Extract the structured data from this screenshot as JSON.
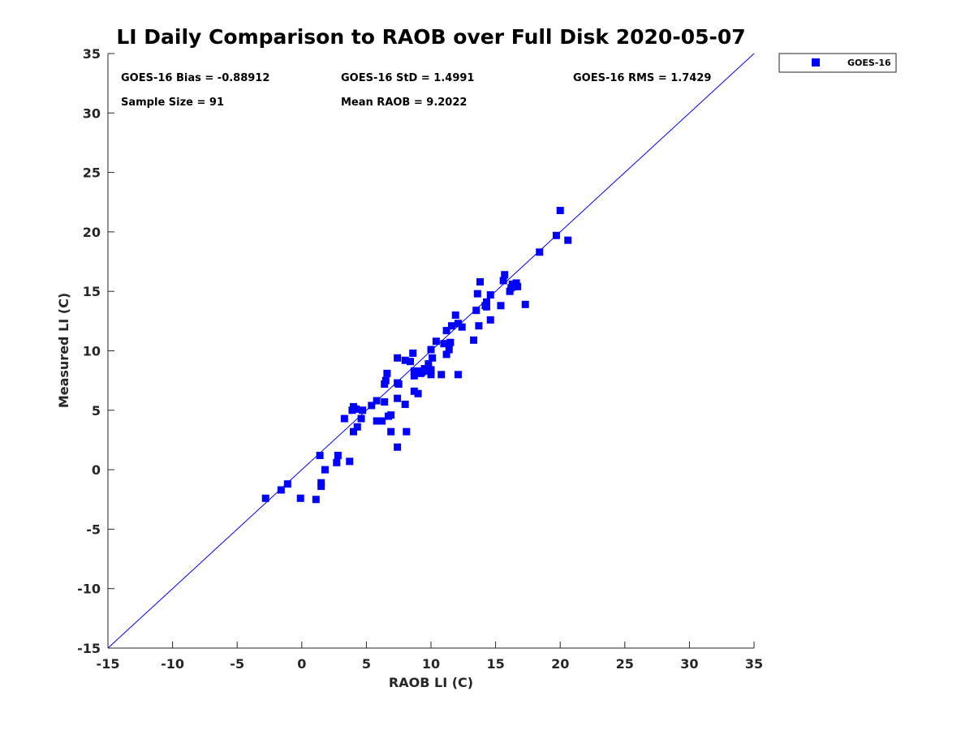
{
  "chart_data": {
    "type": "scatter",
    "title": "LI Daily Comparison to RAOB over Full Disk 2020-05-07",
    "xlabel": "RAOB LI (C)",
    "ylabel": "Measured LI (C)",
    "xlim": [
      -15,
      35
    ],
    "ylim": [
      -15,
      35
    ],
    "xticks": [
      "-15",
      "-10",
      "-5",
      "0",
      "5",
      "10",
      "15",
      "20",
      "25",
      "30",
      "35"
    ],
    "yticks": [
      "-15",
      "-10",
      "-5",
      "0",
      "5",
      "10",
      "15",
      "20",
      "25",
      "30",
      "35"
    ],
    "grid": false,
    "legend_position": "outside-top-right",
    "reference_line": {
      "name": "1:1 line",
      "x": [
        -15,
        35
      ],
      "y": [
        -15,
        35
      ],
      "color": "#0000ff"
    },
    "annotations": {
      "bias": "GOES-16 Bias = -0.88912",
      "std": "GOES-16 StD = 1.4991",
      "rms": "GOES-16 RMS = 1.7429",
      "sample_size": "Sample Size = 91",
      "mean_raob": "Mean RAOB = 9.2022"
    },
    "series": [
      {
        "name": "GOES-16",
        "color": "#0000ff",
        "marker": "square",
        "points": [
          [
            -2.8,
            -2.4
          ],
          [
            -1.6,
            -1.7
          ],
          [
            -1.1,
            -1.2
          ],
          [
            -0.1,
            -2.4
          ],
          [
            1.1,
            -2.5
          ],
          [
            1.5,
            -1.1
          ],
          [
            1.5,
            -1.4
          ],
          [
            1.4,
            1.2
          ],
          [
            1.8,
            0.0
          ],
          [
            2.7,
            0.6
          ],
          [
            2.8,
            1.2
          ],
          [
            3.7,
            0.7
          ],
          [
            3.3,
            4.3
          ],
          [
            3.9,
            5.0
          ],
          [
            4.0,
            5.3
          ],
          [
            4.0,
            3.2
          ],
          [
            4.3,
            3.6
          ],
          [
            4.6,
            4.3
          ],
          [
            4.7,
            5.0
          ],
          [
            5.4,
            5.4
          ],
          [
            5.8,
            5.8
          ],
          [
            5.8,
            4.1
          ],
          [
            6.2,
            4.1
          ],
          [
            6.4,
            5.7
          ],
          [
            6.4,
            7.2
          ],
          [
            6.5,
            7.5
          ],
          [
            6.6,
            8.1
          ],
          [
            6.7,
            4.5
          ],
          [
            6.9,
            4.6
          ],
          [
            6.9,
            3.2
          ],
          [
            7.4,
            9.4
          ],
          [
            7.4,
            7.3
          ],
          [
            7.4,
            6.0
          ],
          [
            7.4,
            1.9
          ],
          [
            8.0,
            9.2
          ],
          [
            8.0,
            5.5
          ],
          [
            8.1,
            3.2
          ],
          [
            8.4,
            9.1
          ],
          [
            8.6,
            9.8
          ],
          [
            8.7,
            8.3
          ],
          [
            8.7,
            7.9
          ],
          [
            8.7,
            6.6
          ],
          [
            9.0,
            6.4
          ],
          [
            9.0,
            8.3
          ],
          [
            9.2,
            8.1
          ],
          [
            9.5,
            8.5
          ],
          [
            9.7,
            8.3
          ],
          [
            9.8,
            8.9
          ],
          [
            10.0,
            10.1
          ],
          [
            10.0,
            8.4
          ],
          [
            10.0,
            8.0
          ],
          [
            10.1,
            9.4
          ],
          [
            10.4,
            10.8
          ],
          [
            10.8,
            8.0
          ],
          [
            11.0,
            10.6
          ],
          [
            11.2,
            11.7
          ],
          [
            11.2,
            9.7
          ],
          [
            11.4,
            10.1
          ],
          [
            11.5,
            10.7
          ],
          [
            11.6,
            12.1
          ],
          [
            11.9,
            13.0
          ],
          [
            12.1,
            12.3
          ],
          [
            12.1,
            8.0
          ],
          [
            12.4,
            12.0
          ],
          [
            13.3,
            10.9
          ],
          [
            13.5,
            13.4
          ],
          [
            13.6,
            14.8
          ],
          [
            13.7,
            12.1
          ],
          [
            13.8,
            15.8
          ],
          [
            14.2,
            13.8
          ],
          [
            14.3,
            14.1
          ],
          [
            14.6,
            14.7
          ],
          [
            14.6,
            12.6
          ],
          [
            15.4,
            13.8
          ],
          [
            15.6,
            15.9
          ],
          [
            15.7,
            16.4
          ],
          [
            16.1,
            15.0
          ],
          [
            16.2,
            15.3
          ],
          [
            16.3,
            15.6
          ],
          [
            16.6,
            15.7
          ],
          [
            16.7,
            15.4
          ],
          [
            17.3,
            13.9
          ],
          [
            18.4,
            18.3
          ],
          [
            19.7,
            19.7
          ],
          [
            20.0,
            21.8
          ],
          [
            20.6,
            19.3
          ],
          [
            14.3,
            13.7
          ],
          [
            9.3,
            8.2
          ],
          [
            7.5,
            7.2
          ],
          [
            4.2,
            5.1
          ],
          [
            16.4,
            15.4
          ]
        ]
      }
    ]
  }
}
